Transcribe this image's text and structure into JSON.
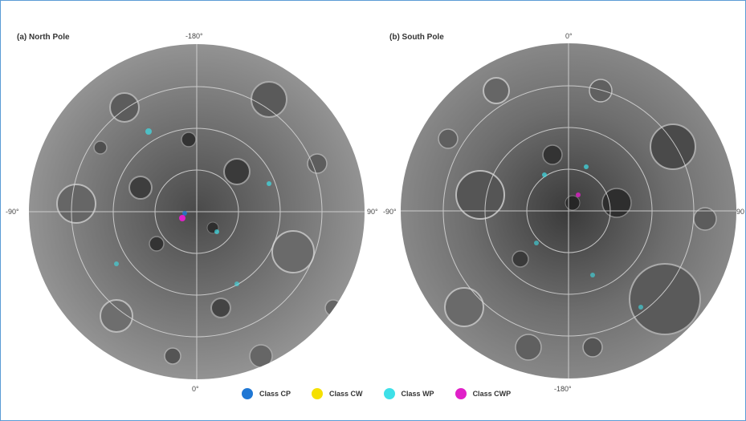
{
  "north": {
    "title": "(a) North Pole",
    "top_label": "-180°",
    "bottom_label": "0°",
    "left_label": "-90°",
    "right_label": "90°"
  },
  "south": {
    "title": "(b) South Pole",
    "top_label": "0°",
    "bottom_label": "-180°",
    "left_label": "-90°",
    "right_label": "90"
  },
  "legend": [
    {
      "label": "Class CP",
      "color": "#1f77d4"
    },
    {
      "label": "Class CW",
      "color": "#f5e000"
    },
    {
      "label": "Class WP",
      "color": "#3ee0e8"
    },
    {
      "label": "Class CWP",
      "color": "#e020c8"
    }
  ]
}
